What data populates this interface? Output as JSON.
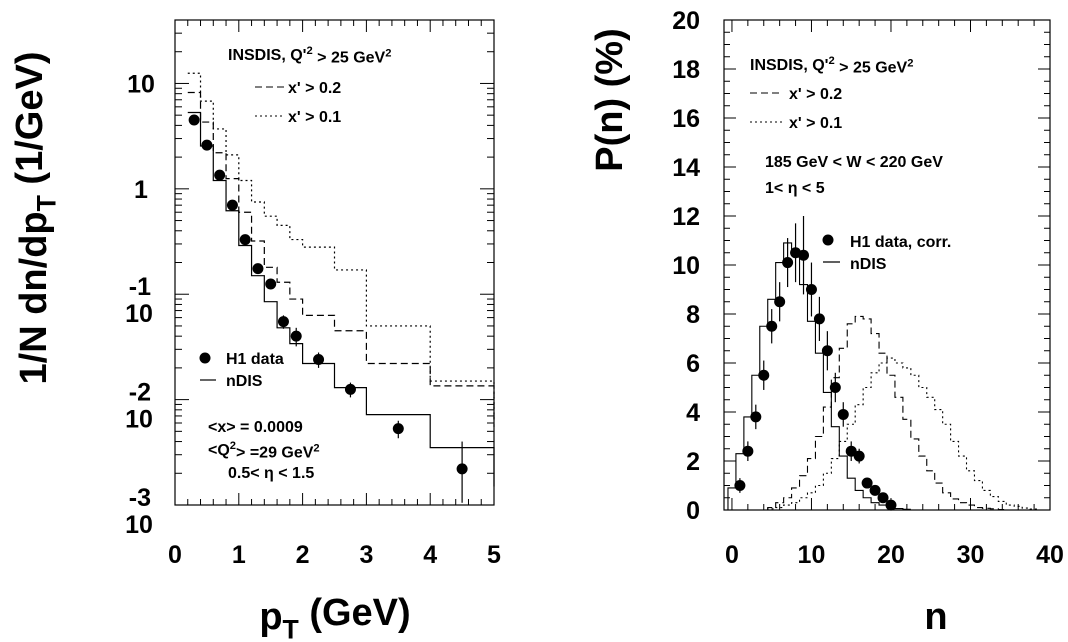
{
  "chart_data": [
    {
      "type": "line",
      "ylabel": "1/N dn/dp",
      "ylabel_sub": "T",
      "ylabel_unit": " (1/GeV)",
      "xlabel": "p",
      "xlabel_sub": "T",
      "xlabel_unit": " (GeV)",
      "xlim": [
        0,
        5
      ],
      "ylim": [
        0.001,
        40
      ],
      "log_y": true,
      "x_ticks": [
        "0",
        "1",
        "2",
        "3",
        "4",
        "5"
      ],
      "y_ticks": [
        {
          "value": 10,
          "base": "10",
          "exp": ""
        },
        {
          "value": 1,
          "base": "1",
          "exp": ""
        },
        {
          "value": 0.1,
          "base": "10",
          "exp": "-1"
        },
        {
          "value": 0.01,
          "base": "10",
          "exp": "-2"
        },
        {
          "value": 0.001,
          "base": "10",
          "exp": "-3"
        }
      ],
      "legend_header": {
        "text": "INSDIS, Q'",
        "sup": "2",
        "rest": " > 25 GeV",
        "sup2": "2"
      },
      "annotations": [
        {
          "text": "<x> = 0.0009"
        },
        {
          "text": "<Q",
          "sup": "2",
          "rest": "> =29 GeV",
          "sup2": "2"
        },
        {
          "text": "0.5< η < 1.5"
        }
      ],
      "series": [
        {
          "name": "x' > 0.2",
          "style": "dashed",
          "edges": [
            0.2,
            0.4,
            0.6,
            0.8,
            1.0,
            1.2,
            1.4,
            1.6,
            1.8,
            2.0,
            2.5,
            3.0,
            4.0,
            5.0
          ],
          "values": [
            8.2,
            4.3,
            2.2,
            1.25,
            0.6,
            0.32,
            0.18,
            0.13,
            0.09,
            0.063,
            0.045,
            0.022,
            0.0135,
            0.0055
          ]
        },
        {
          "name": "x' > 0.1",
          "style": "dotted",
          "edges": [
            0.2,
            0.4,
            0.6,
            0.8,
            1.0,
            1.2,
            1.4,
            1.6,
            1.8,
            2.0,
            2.5,
            3.0,
            4.0,
            5.0
          ],
          "values": [
            12.5,
            6.8,
            3.7,
            2.1,
            1.2,
            0.75,
            0.55,
            0.45,
            0.33,
            0.28,
            0.17,
            0.05,
            0.015,
            0.0065
          ]
        },
        {
          "name": "nDIS",
          "style": "solid",
          "edges": [
            0.2,
            0.4,
            0.6,
            0.8,
            1.0,
            1.2,
            1.4,
            1.6,
            1.8,
            2.0,
            2.5,
            3.0,
            4.0,
            5.0
          ],
          "values": [
            5.3,
            2.55,
            1.2,
            0.62,
            0.29,
            0.15,
            0.085,
            0.048,
            0.034,
            0.022,
            0.013,
            0.0072,
            0.0035,
            0.0015
          ]
        },
        {
          "name": "H1 data",
          "style": "markers",
          "x": [
            0.3,
            0.5,
            0.7,
            0.9,
            1.1,
            1.3,
            1.5,
            1.7,
            1.9,
            2.25,
            2.75,
            3.5,
            4.5
          ],
          "y": [
            4.5,
            2.6,
            1.35,
            0.7,
            0.33,
            0.175,
            0.125,
            0.055,
            0.04,
            0.024,
            0.0125,
            0.0053,
            0.0022
          ],
          "yerr": [
            0.3,
            0.15,
            0.08,
            0.05,
            0.025,
            0.015,
            0.01,
            0.008,
            0.008,
            0.004,
            0.002,
            0.001,
            0.0018
          ]
        }
      ]
    },
    {
      "type": "line",
      "ylabel": "P(n) (%)",
      "xlabel": "n",
      "xlim": [
        -1,
        40
      ],
      "ylim": [
        0,
        20
      ],
      "x_ticks": [
        "0",
        "10",
        "20",
        "30",
        "40"
      ],
      "y_ticks": [
        "0",
        "2",
        "4",
        "6",
        "8",
        "10",
        "12",
        "14",
        "16",
        "18",
        "20"
      ],
      "legend_header": {
        "text": "INSDIS, Q'",
        "sup": "2",
        "rest": " > 25  GeV",
        "sup2": "2"
      },
      "annotations": [
        {
          "text": "185 GeV < W < 220 GeV"
        },
        {
          "text": "1< η < 5"
        }
      ],
      "series": [
        {
          "name": "x' > 0.2",
          "style": "dashed",
          "x": [
            5,
            6,
            7,
            8,
            9,
            10,
            11,
            12,
            13,
            14,
            15,
            16,
            17,
            18,
            19,
            20,
            21,
            22,
            23,
            24,
            25,
            26,
            27,
            28,
            29,
            30,
            31,
            32,
            33,
            34
          ],
          "y": [
            0.1,
            0.3,
            0.5,
            0.9,
            1.4,
            2.1,
            3.0,
            4.2,
            5.4,
            6.6,
            7.6,
            7.9,
            7.8,
            7.2,
            6.4,
            5.5,
            4.6,
            3.7,
            2.9,
            2.2,
            1.6,
            1.1,
            0.7,
            0.45,
            0.3,
            0.2,
            0.1,
            0.07,
            0.05,
            0.02
          ]
        },
        {
          "name": "x' > 0.1",
          "style": "dotted",
          "x": [
            5,
            6,
            7,
            8,
            9,
            10,
            11,
            12,
            13,
            14,
            15,
            16,
            17,
            18,
            19,
            20,
            21,
            22,
            23,
            24,
            25,
            26,
            27,
            28,
            29,
            30,
            31,
            32,
            33,
            34,
            35,
            36,
            37,
            38
          ],
          "y": [
            0.05,
            0.1,
            0.2,
            0.3,
            0.5,
            0.7,
            1.0,
            1.5,
            2.1,
            2.8,
            3.5,
            4.3,
            5.0,
            5.6,
            6.0,
            6.2,
            6.0,
            5.8,
            5.5,
            5.0,
            4.6,
            4.1,
            3.5,
            2.8,
            2.2,
            1.6,
            1.2,
            0.8,
            0.55,
            0.35,
            0.2,
            0.15,
            0.08,
            0.04
          ]
        },
        {
          "name": "nDIS",
          "style": "solid",
          "x": [
            0,
            1,
            2,
            3,
            4,
            5,
            6,
            7,
            8,
            9,
            10,
            11,
            12,
            13,
            14,
            15,
            16,
            17,
            18,
            19,
            20,
            21,
            22
          ],
          "y": [
            0.9,
            2.3,
            3.8,
            5.5,
            7.5,
            8.6,
            10.1,
            10.9,
            10.4,
            9.2,
            7.7,
            6.4,
            4.8,
            3.4,
            2.2,
            1.3,
            0.8,
            0.5,
            0.3,
            0.2,
            0.1,
            0.06,
            0.03
          ]
        },
        {
          "name": "H1 data, corr.",
          "style": "markers",
          "x": [
            1,
            2,
            3,
            4,
            5,
            6,
            7,
            8,
            9,
            10,
            11,
            12,
            13,
            14,
            15,
            16,
            17,
            18,
            19,
            20
          ],
          "y": [
            1.0,
            2.4,
            3.8,
            5.5,
            7.5,
            8.5,
            10.1,
            10.5,
            10.4,
            9.0,
            7.8,
            6.5,
            5.0,
            3.9,
            2.4,
            2.2,
            1.1,
            0.8,
            0.5,
            0.2
          ],
          "yerr": [
            0.3,
            0.4,
            0.5,
            0.6,
            0.7,
            0.8,
            1.0,
            1.2,
            1.6,
            1.1,
            0.9,
            0.8,
            0.6,
            0.5,
            0.4,
            0.3,
            0.2,
            0.15,
            0.1,
            0.05
          ]
        }
      ]
    }
  ]
}
